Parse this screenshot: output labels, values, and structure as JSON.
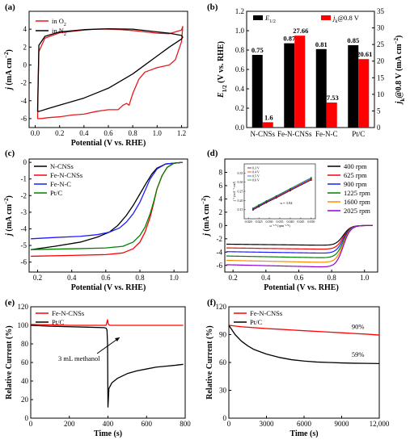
{
  "chart_data": [
    {
      "panel": "(a)",
      "type": "line",
      "xlabel": "Potential (V vs. RHE)",
      "ylabel": "j (mA cm⁻²)",
      "xlim": [
        -0.05,
        1.25
      ],
      "ylim": [
        -7,
        6
      ],
      "xticks": [
        0.0,
        0.2,
        0.4,
        0.6,
        0.8,
        1.0,
        1.2
      ],
      "xtick_labels": [
        "0.0",
        "0.2",
        "0.4",
        "0.6",
        "0.8",
        "1.0",
        "1.2"
      ],
      "yticks": [
        -6,
        -4,
        -2,
        0,
        2,
        4
      ],
      "ytick_labels": [
        "-6",
        "-4",
        "-2",
        "0",
        "2",
        "4"
      ],
      "legend_position": "top-left",
      "series": [
        {
          "name": "in O₂",
          "color": "#e8191c",
          "x": [
            0.02,
            0.03,
            0.08,
            0.2,
            0.4,
            0.5,
            0.6,
            0.7,
            0.8,
            0.9,
            1.0,
            1.1,
            1.2,
            1.21,
            1.2,
            1.15,
            1.1,
            1.0,
            0.9,
            0.85,
            0.8,
            0.77,
            0.75,
            0.72,
            0.68,
            0.6,
            0.5,
            0.4,
            0.3,
            0.2,
            0.1,
            0.05,
            0.02,
            0.02
          ],
          "y": [
            -4.5,
            1.5,
            3.0,
            3.6,
            3.9,
            4.0,
            4.0,
            3.95,
            3.85,
            3.7,
            3.55,
            3.5,
            3.9,
            4.3,
            2.6,
            0.6,
            0.0,
            -0.3,
            -0.8,
            -1.6,
            -3.2,
            -4.5,
            -4.3,
            -4.5,
            -5.0,
            -5.0,
            -5.2,
            -5.5,
            -5.6,
            -5.8,
            -5.9,
            -6.0,
            -6.0,
            -4.5
          ]
        },
        {
          "name": "in N₂",
          "color": "#000000",
          "x": [
            0.02,
            0.03,
            0.08,
            0.2,
            0.4,
            0.6,
            0.8,
            1.0,
            1.1,
            1.2,
            1.21,
            1.2,
            1.1,
            1.0,
            0.9,
            0.8,
            0.7,
            0.6,
            0.4,
            0.2,
            0.1,
            0.03,
            0.02
          ],
          "y": [
            -5.2,
            2.2,
            3.2,
            3.7,
            3.95,
            4.05,
            4.0,
            3.7,
            3.55,
            3.3,
            3.1,
            2.9,
            2.0,
            1.0,
            0.0,
            -1.0,
            -1.8,
            -2.6,
            -3.7,
            -4.5,
            -4.9,
            -5.2,
            -5.2
          ]
        }
      ]
    },
    {
      "panel": "(b)",
      "type": "bar",
      "categories": [
        "N-CNSs",
        "Fe-N-CNSs",
        "Fe-N-C",
        "Pt/C"
      ],
      "ylabel": "E1/2 (V vs. RHE)",
      "y2label": "jk@0.8 V (mA cm⁻²)",
      "ylim": [
        0,
        1.2
      ],
      "y2lim": [
        0,
        35
      ],
      "yticks": [
        0,
        0.2,
        0.4,
        0.6,
        0.8,
        1.0,
        1.2
      ],
      "ytick_labels": [
        "0.0",
        "0.2",
        "0.4",
        "0.6",
        "0.8",
        "1.0",
        "1.2"
      ],
      "y2ticks": [
        0,
        5,
        10,
        15,
        20,
        25,
        30,
        35
      ],
      "y2tick_labels": [
        "0",
        "5",
        "10",
        "15",
        "20",
        "25",
        "30",
        "35"
      ],
      "legend_position": "top",
      "series": [
        {
          "name": "E1/2",
          "color": "#000000",
          "axis": "left",
          "values": [
            0.75,
            0.87,
            0.81,
            0.85
          ],
          "labels": [
            "0.75",
            "0.87",
            "0.81",
            "0.85"
          ]
        },
        {
          "name": "jk@0.8 V",
          "color": "#ff0000",
          "axis": "right",
          "values": [
            1.6,
            27.66,
            7.53,
            20.61
          ],
          "labels": [
            "1.6",
            "27.66",
            "7.53",
            "20.61"
          ]
        }
      ]
    },
    {
      "panel": "(c)",
      "type": "line",
      "xlabel": "Potential (V vs. RHE)",
      "ylabel": "j (mA cm⁻²)",
      "xlim": [
        0.15,
        1.08
      ],
      "ylim": [
        -6.6,
        0.2
      ],
      "xticks": [
        0.2,
        0.4,
        0.6,
        0.8,
        1.0
      ],
      "xtick_labels": [
        "0.2",
        "0.4",
        "0.6",
        "0.8",
        "1.0"
      ],
      "yticks": [
        -6,
        -5,
        -4,
        -3,
        -2,
        -1,
        0
      ],
      "ytick_labels": [
        "-6",
        "-5",
        "-4",
        "-3",
        "-2",
        "-1",
        "0"
      ],
      "legend_position": "top-left",
      "series": [
        {
          "name": "N-CNSs",
          "color": "#000000",
          "x": [
            0.16,
            0.3,
            0.45,
            0.55,
            0.62,
            0.67,
            0.72,
            0.76,
            0.8,
            0.84,
            0.87,
            0.9,
            0.95,
            1.05
          ],
          "y": [
            -5.25,
            -5.05,
            -4.8,
            -4.5,
            -4.2,
            -3.8,
            -3.2,
            -2.6,
            -1.9,
            -1.2,
            -0.7,
            -0.35,
            -0.1,
            0.0
          ]
        },
        {
          "name": "Fe-N-CNSs",
          "color": "#ff0000",
          "x": [
            0.16,
            0.4,
            0.6,
            0.7,
            0.76,
            0.8,
            0.83,
            0.86,
            0.88,
            0.9,
            0.93,
            0.96,
            1.0,
            1.05
          ],
          "y": [
            -5.65,
            -5.6,
            -5.55,
            -5.45,
            -5.2,
            -4.8,
            -4.2,
            -3.3,
            -2.5,
            -1.6,
            -0.8,
            -0.3,
            -0.05,
            0.0
          ]
        },
        {
          "name": "Fe-N-C",
          "color": "#1c1cff",
          "x": [
            0.16,
            0.3,
            0.45,
            0.55,
            0.62,
            0.68,
            0.72,
            0.76,
            0.8,
            0.83,
            0.86,
            0.9,
            0.95,
            1.05
          ],
          "y": [
            -4.6,
            -4.52,
            -4.45,
            -4.35,
            -4.2,
            -3.95,
            -3.6,
            -3.1,
            -2.4,
            -1.7,
            -1.0,
            -0.4,
            -0.1,
            0.0
          ]
        },
        {
          "name": "Pt/C",
          "color": "#008000",
          "x": [
            0.16,
            0.4,
            0.6,
            0.7,
            0.76,
            0.8,
            0.83,
            0.86,
            0.88,
            0.9,
            0.93,
            0.96,
            1.0,
            1.05
          ],
          "y": [
            -5.25,
            -5.2,
            -5.15,
            -5.05,
            -4.8,
            -4.4,
            -3.9,
            -3.1,
            -2.4,
            -1.6,
            -0.8,
            -0.3,
            -0.05,
            0.0
          ]
        }
      ]
    },
    {
      "panel": "(d)",
      "type": "line",
      "xlabel": "Potential (V vs. RHE)",
      "ylabel": "j (mA cm⁻²)",
      "xlim": [
        0.15,
        1.08
      ],
      "ylim": [
        -7,
        10
      ],
      "xticks": [
        0.2,
        0.4,
        0.6,
        0.8,
        1.0
      ],
      "xtick_labels": [
        "0.2",
        "0.4",
        "0.6",
        "0.8",
        "1.0"
      ],
      "yticks": [
        -6,
        -4,
        -2,
        0,
        2,
        4,
        6,
        8
      ],
      "ytick_labels": [
        "-6",
        "-4",
        "-2",
        "0",
        "2",
        "4",
        "6",
        "8"
      ],
      "legend_position": "top-right",
      "annotation": "n = 3.94",
      "series": [
        {
          "name": "400 rpm",
          "color": "#000000",
          "limit": -3.0
        },
        {
          "name": "625 rpm",
          "color": "#ff0000",
          "limit": -3.6
        },
        {
          "name": "900 rpm",
          "color": "#1c1cff",
          "limit": -4.2
        },
        {
          "name": "1225 rpm",
          "color": "#008000",
          "limit": -4.9
        },
        {
          "name": "1600 rpm",
          "color": "#ff8c00",
          "limit": -5.6
        },
        {
          "name": "2025 rpm",
          "color": "#9400d3",
          "limit": -6.3
        }
      ],
      "inset": {
        "xlabel": "ω⁻¹ᐟ² (rpm⁻¹ᐟ²)",
        "ylabel": "j⁻¹ (mA⁻¹ cm²)",
        "xlim": [
          0.018,
          0.052
        ],
        "ylim": [
          0.1,
          0.4
        ],
        "xticks": [
          0.02,
          0.025,
          0.03,
          0.035,
          0.04,
          0.045,
          0.05
        ],
        "xtick_labels": [
          "0.020",
          "0.025",
          "0.030",
          "0.035",
          "0.040",
          "0.045",
          "0.050"
        ],
        "yticks": [
          0.15,
          0.2,
          0.25,
          0.3,
          0.35
        ],
        "ytick_labels": [
          "0.15",
          "0.20",
          "0.25",
          "0.30",
          "0.35"
        ],
        "series": [
          {
            "name": "0.3 V",
            "color": "#000000",
            "x": [
              0.0222,
              0.025,
              0.0286,
              0.0333,
              0.04,
              0.05
            ],
            "y": [
              0.148,
              0.166,
              0.188,
              0.214,
              0.254,
              0.312
            ]
          },
          {
            "name": "0.4 V",
            "color": "#ff0000",
            "x": [
              0.0222,
              0.025,
              0.0286,
              0.0333,
              0.04,
              0.05
            ],
            "y": [
              0.151,
              0.169,
              0.191,
              0.217,
              0.257,
              0.316
            ]
          },
          {
            "name": "0.5 V",
            "color": "#1c1cff",
            "x": [
              0.0222,
              0.025,
              0.0286,
              0.0333,
              0.04,
              0.05
            ],
            "y": [
              0.154,
              0.172,
              0.194,
              0.221,
              0.261,
              0.32
            ]
          },
          {
            "name": "0.6 V",
            "color": "#008000",
            "x": [
              0.0222,
              0.025,
              0.0286,
              0.0333,
              0.04,
              0.05
            ],
            "y": [
              0.158,
              0.176,
              0.198,
              0.225,
              0.265,
              0.325
            ]
          }
        ]
      }
    },
    {
      "panel": "(e)",
      "type": "line",
      "xlabel": "Time (s)",
      "ylabel": "Relative Current (%)",
      "xlim": [
        0,
        800
      ],
      "ylim": [
        0,
        120
      ],
      "xticks": [
        0,
        200,
        400,
        600,
        800
      ],
      "xtick_labels": [
        "0",
        "200",
        "400",
        "600",
        "800"
      ],
      "yticks": [
        0,
        20,
        40,
        60,
        80,
        100,
        120
      ],
      "ytick_labels": [
        "0",
        "20",
        "40",
        "60",
        "80",
        "100",
        "120"
      ],
      "legend_position": "top-left",
      "annotation": "3 mL methanol",
      "series": [
        {
          "name": "Fe-N-CNSs",
          "color": "#ff0000",
          "x": [
            0,
            100,
            200,
            300,
            390,
            398,
            402,
            410,
            500,
            600,
            700,
            790
          ],
          "y": [
            101,
            100.5,
            100,
            100,
            100,
            106,
            101,
            100,
            100,
            100,
            100,
            100
          ]
        },
        {
          "name": "Pt/C",
          "color": "#000000",
          "x": [
            0,
            100,
            200,
            300,
            380,
            390,
            395,
            398,
            400,
            405,
            420,
            450,
            500,
            550,
            600,
            650,
            700,
            750,
            790
          ],
          "y": [
            100,
            99,
            98.5,
            98,
            97.5,
            97,
            95,
            80,
            12,
            32,
            38,
            43,
            48,
            51,
            53,
            55,
            56,
            57,
            58
          ]
        }
      ]
    },
    {
      "panel": "(f)",
      "type": "line",
      "xlabel": "Time (s)",
      "ylabel": "Relative Current (%)",
      "xlim": [
        0,
        12000
      ],
      "ylim": [
        0,
        120
      ],
      "xticks": [
        0,
        3000,
        6000,
        9000,
        12000
      ],
      "xtick_labels": [
        "0",
        "3000",
        "6000",
        "9000",
        "12,000"
      ],
      "yticks": [
        0,
        30,
        60,
        90,
        120
      ],
      "ytick_labels": [
        "0",
        "30",
        "60",
        "90",
        "120"
      ],
      "legend_position": "top-left",
      "series": [
        {
          "name": "Fe-N-CNSs",
          "color": "#ff0000",
          "label": "90%",
          "x": [
            0,
            1000,
            2000,
            3000,
            4000,
            5000,
            6000,
            7000,
            8000,
            9000,
            10000,
            11000,
            12000
          ],
          "y": [
            100,
            98.5,
            97.5,
            96.5,
            95.8,
            95,
            94.2,
            93.5,
            92.7,
            92,
            91.2,
            90.5,
            89.5
          ]
        },
        {
          "name": "Pt/C",
          "color": "#000000",
          "label": "59%",
          "x": [
            0,
            500,
            1000,
            1500,
            2000,
            3000,
            4000,
            5000,
            6000,
            7000,
            8000,
            9000,
            10000,
            11000,
            12000
          ],
          "y": [
            100,
            90,
            83,
            78,
            74,
            69,
            65.5,
            63,
            61.5,
            60.5,
            60,
            59.5,
            59.2,
            59,
            58.8
          ]
        }
      ]
    }
  ]
}
